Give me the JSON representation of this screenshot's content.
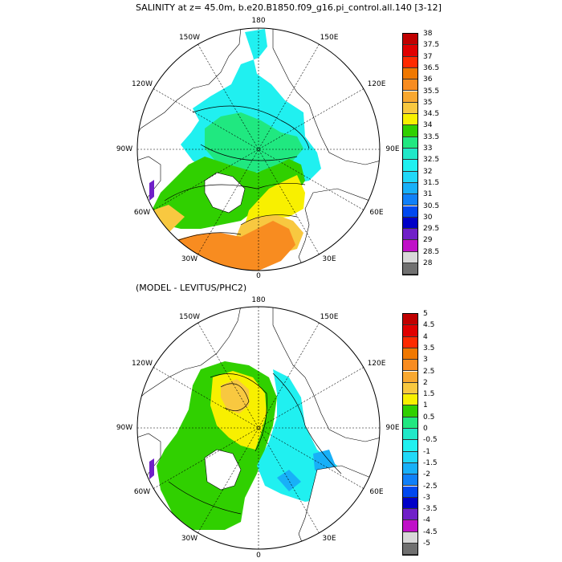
{
  "top_panel": {
    "title": "SALINITY at z=  45.0m, b.e20.B1850.f09_g16.pi_control.all.140 [3-12]",
    "lon_labels": {
      "top": "180",
      "bottom": "0",
      "left": "90W",
      "right": "90E",
      "ul1": "150W",
      "ul2": "120W",
      "ur1": "150E",
      "ur2": "120E",
      "ll1": "60W",
      "ll2": "30W",
      "lr1": "60E",
      "lr2": "30E"
    },
    "colorbar": {
      "labels": [
        "38",
        "37.5",
        "37",
        "36.5",
        "36",
        "35.5",
        "35",
        "34.5",
        "34",
        "33.5",
        "33",
        "32.5",
        "32",
        "31.5",
        "31",
        "30.5",
        "30",
        "29.5",
        "29",
        "28.5",
        "28"
      ],
      "colors": [
        "#c00000",
        "#e00000",
        "#ff2a00",
        "#f07800",
        "#f88c20",
        "#f8a830",
        "#f8c840",
        "#f8f000",
        "#30d000",
        "#20e880",
        "#20e8c8",
        "#20f0f0",
        "#20d8f8",
        "#18b0f8",
        "#1080f8",
        "#0048f0",
        "#0000c8",
        "#7020c8",
        "#c010c8",
        "#d8d8d8",
        "#707070"
      ]
    },
    "fields": [
      {
        "name": "low-salinity-shelf",
        "color": "#20f0f0"
      },
      {
        "name": "mid-salinity",
        "color": "#20e880"
      },
      {
        "name": "green-34",
        "color": "#30d000"
      },
      {
        "name": "yellow-34-5",
        "color": "#f8f000"
      },
      {
        "name": "orange-35",
        "color": "#f8c840"
      },
      {
        "name": "atlantic-35-5",
        "color": "#f88c20"
      }
    ]
  },
  "bottom_panel": {
    "title": "(MODEL - LEVITUS/PHC2)",
    "lon_labels": {
      "top": "180",
      "bottom": "0",
      "left": "90W",
      "right": "90E",
      "ul1": "150W",
      "ul2": "120W",
      "ur1": "150E",
      "ur2": "120E",
      "ll1": "60W",
      "ll2": "30W",
      "lr1": "60E",
      "lr2": "30E"
    },
    "colorbar": {
      "labels": [
        "5",
        "4.5",
        "4",
        "3.5",
        "3",
        "2.5",
        "2",
        "1.5",
        "1",
        "0.5",
        "0",
        "-0.5",
        "-1",
        "-1.5",
        "-2",
        "-2.5",
        "-3",
        "-3.5",
        "-4",
        "-4.5",
        "-5"
      ],
      "colors": [
        "#c00000",
        "#e00000",
        "#ff2a00",
        "#f07800",
        "#f88c20",
        "#f8a830",
        "#f8c840",
        "#f8f000",
        "#30d000",
        "#20e880",
        "#20e8c8",
        "#20f0f0",
        "#20d8f8",
        "#18b0f8",
        "#1080f8",
        "#0048f0",
        "#0000c8",
        "#7020c8",
        "#c010c8",
        "#d8d8d8",
        "#707070"
      ]
    },
    "fields": [
      {
        "name": "diff-green",
        "color": "#30d000"
      },
      {
        "name": "diff-yellow",
        "color": "#f8f000"
      },
      {
        "name": "diff-cyan",
        "color": "#20f0f0"
      },
      {
        "name": "diff-orange",
        "color": "#f8c840"
      },
      {
        "name": "diff-blue",
        "color": "#18b0f8"
      }
    ]
  },
  "land_color": "#ffffff"
}
